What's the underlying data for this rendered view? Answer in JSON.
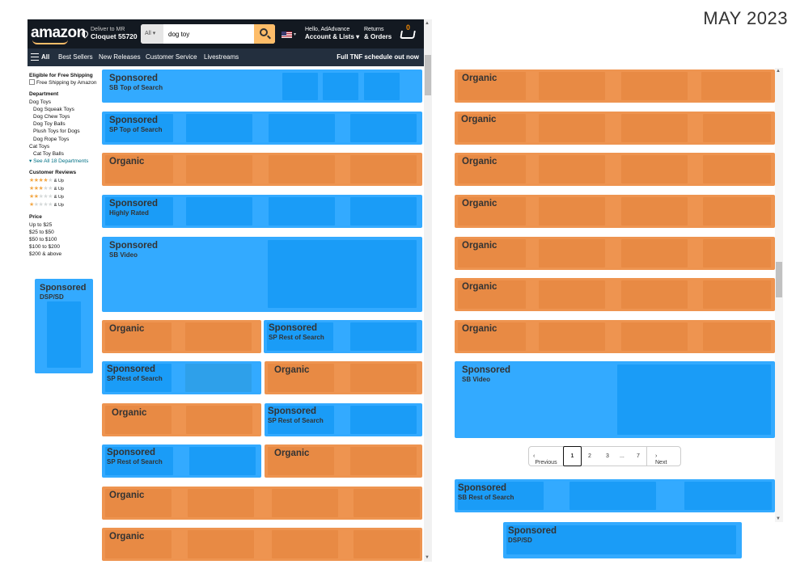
{
  "date_stamp": "MAY 2023",
  "header": {
    "logo": "amazon",
    "deliver_to": "Deliver to MR",
    "location": "Cloquet 55720",
    "search_category": "All",
    "search_value": "dog toy",
    "account_greeting": "Hello, AdAdvance",
    "account_menu": "Account & Lists",
    "returns_line1": "Returns",
    "returns_line2": "& Orders",
    "cart_count": "0"
  },
  "subnav": {
    "all": "All",
    "items": [
      "Best Sellers",
      "New Releases",
      "Customer Service",
      "Livestreams"
    ],
    "promo": "Full TNF schedule out now"
  },
  "filters": {
    "free_shipping_heading": "Eligible for Free Shipping",
    "free_shipping_option": "Free Shipping by Amazon",
    "department_heading": "Department",
    "dog_toys": "Dog Toys",
    "dog_subs": [
      "Dog Squeak Toys",
      "Dog Chew Toys",
      "Dog Toy Balls",
      "Plush Toys for Dogs",
      "Dog Rope Toys"
    ],
    "cat_toys": "Cat Toys",
    "cat_subs": [
      "Cat Toy Balls"
    ],
    "see_all": "See All 18 Departments",
    "reviews_heading": "Customer Reviews",
    "review_suffix": "& Up",
    "price_heading": "Price",
    "prices": [
      "Up to $25",
      "$25 to $50",
      "$50 to $100",
      "$100 to $200",
      "$200 & above"
    ]
  },
  "labels": {
    "sponsored": "Sponsored",
    "organic": "Organic",
    "sb_top": "SB Top of Search",
    "sp_top": "SP Top of Search",
    "highly_rated": "Highly Rated",
    "sb_video": "SB Video",
    "dsp_sd": "DSP/SD",
    "sp_rest": "SP Rest of Search",
    "sb_rest": "SB Rest of Search"
  },
  "pagination": {
    "previous": "Previous",
    "current": "1",
    "pages": [
      "2",
      "3",
      "...",
      "7"
    ],
    "next": "Next"
  },
  "colors": {
    "sponsored": "#33aaff",
    "organic": "#ee9450",
    "nav_dark": "#131921",
    "nav_sub": "#232f3e",
    "search_button": "#febd69"
  }
}
